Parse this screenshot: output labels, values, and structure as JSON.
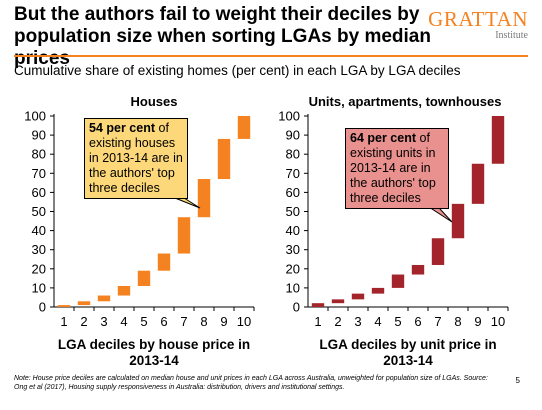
{
  "slide": {
    "title": "But the authors fail to weight their deciles by population size when sorting LGAs by median prices",
    "subtitle": "Cumulative share of existing homes (per cent) in each LGA by LGA deciles",
    "logo_main": "GRATTAN",
    "logo_sub": "Institute",
    "footnote": "Note: House price deciles are calculated on median house and unit prices in each LGA across Australia, unweighted for population size of LGAs. Source: Ong et al (2017), Housing supply responsiveness in Australia: distribution, drivers and institutional settings.",
    "page_number": "5"
  },
  "colors": {
    "accent": "#f58220",
    "houses_bar": "#f58220",
    "units_bar": "#a3252b",
    "callout_houses": "#fdd87a",
    "callout_units": "#e8918e"
  },
  "chart_data": [
    {
      "type": "bar",
      "subtype": "waterfall",
      "title": "Houses",
      "categories": [
        "1",
        "2",
        "3",
        "4",
        "5",
        "6",
        "7",
        "8",
        "9",
        "10"
      ],
      "series": [
        {
          "cumulative_start": [
            0,
            1,
            3,
            6,
            11,
            19,
            28,
            47,
            67,
            88
          ],
          "cumulative_end": [
            1,
            3,
            6,
            11,
            19,
            28,
            47,
            67,
            88,
            100
          ]
        }
      ],
      "xlabel": "LGA deciles by house price  in 2013-14",
      "ylim": [
        0,
        100
      ],
      "yticks": [
        "0",
        "10",
        "20",
        "30",
        "40",
        "50",
        "60",
        "70",
        "80",
        "90",
        "100"
      ],
      "annotation": {
        "bold": "54 per cent",
        "text": " of existing houses in 2013-14 are in the authors' top three deciles"
      }
    },
    {
      "type": "bar",
      "subtype": "waterfall",
      "title": "Units, apartments, townhouses",
      "categories": [
        "1",
        "2",
        "3",
        "4",
        "5",
        "6",
        "7",
        "8",
        "9",
        "10"
      ],
      "series": [
        {
          "cumulative_start": [
            0,
            2,
            4,
            7,
            10,
            17,
            22,
            36,
            54,
            75
          ],
          "cumulative_end": [
            2,
            4,
            7,
            10,
            17,
            22,
            36,
            54,
            75,
            100
          ]
        }
      ],
      "xlabel": "LGA deciles by unit price in 2013-14",
      "ylim": [
        0,
        100
      ],
      "yticks": [
        "0",
        "10",
        "20",
        "30",
        "40",
        "50",
        "60",
        "70",
        "80",
        "90",
        "100"
      ],
      "annotation": {
        "bold": "64 per cent",
        "text": " of existing units in 2013-14 are in the authors' top three deciles"
      }
    }
  ]
}
